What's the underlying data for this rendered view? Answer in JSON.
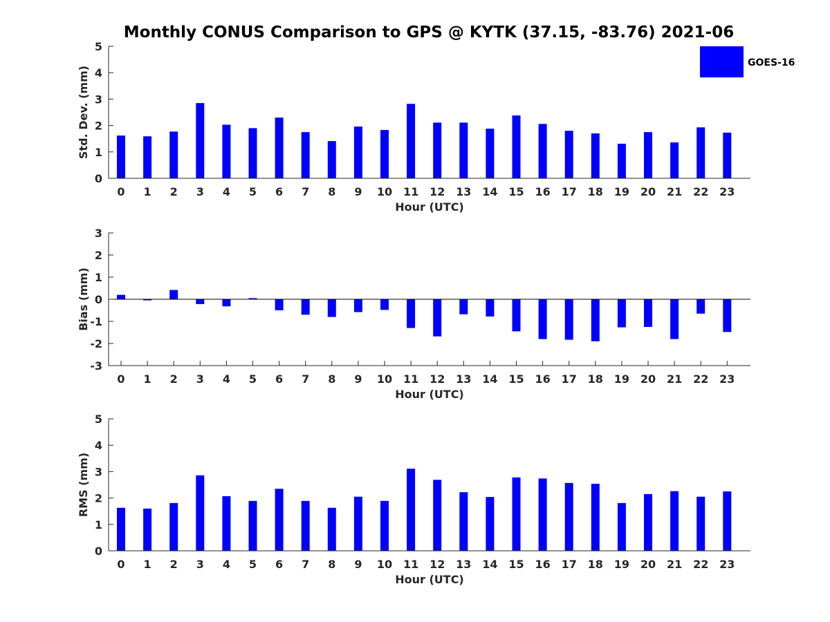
{
  "title": "Monthly CONUS Comparison to GPS @ KYTK (37.15, -83.76) 2021-06",
  "legend": {
    "label": "GOES-16",
    "color": "#0000ff",
    "placement": "top-right"
  },
  "chart_data": [
    {
      "type": "bar",
      "xlabel": "Hour (UTC)",
      "ylabel": "Std. Dev. (mm)",
      "ylim": [
        0,
        5
      ],
      "yticks": [
        0,
        1,
        2,
        3,
        4,
        5
      ],
      "categories": [
        "0",
        "1",
        "2",
        "3",
        "4",
        "5",
        "6",
        "7",
        "8",
        "9",
        "10",
        "11",
        "12",
        "13",
        "14",
        "15",
        "16",
        "17",
        "18",
        "19",
        "20",
        "21",
        "22",
        "23"
      ],
      "series": [
        {
          "name": "GOES-16",
          "color": "#0000ff",
          "values": [
            1.62,
            1.59,
            1.77,
            2.85,
            2.03,
            1.9,
            2.3,
            1.75,
            1.41,
            1.96,
            1.83,
            2.82,
            2.11,
            2.11,
            1.88,
            2.38,
            2.06,
            1.8,
            1.7,
            1.31,
            1.75,
            1.36,
            1.93,
            1.73
          ]
        }
      ]
    },
    {
      "type": "bar",
      "xlabel": "Hour (UTC)",
      "ylabel": "Bias (mm)",
      "ylim": [
        -3,
        3
      ],
      "yticks": [
        -3,
        -2,
        -1,
        0,
        1,
        2,
        3
      ],
      "categories": [
        "0",
        "1",
        "2",
        "3",
        "4",
        "5",
        "6",
        "7",
        "8",
        "9",
        "10",
        "11",
        "12",
        "13",
        "14",
        "15",
        "16",
        "17",
        "18",
        "19",
        "20",
        "21",
        "22",
        "23"
      ],
      "series": [
        {
          "name": "GOES-16",
          "color": "#0000ff",
          "values": [
            0.2,
            -0.05,
            0.42,
            -0.22,
            -0.32,
            0.05,
            -0.5,
            -0.7,
            -0.8,
            -0.58,
            -0.48,
            -1.3,
            -1.68,
            -0.68,
            -0.78,
            -1.45,
            -1.8,
            -1.83,
            -1.9,
            -1.27,
            -1.25,
            -1.8,
            -0.65,
            -1.48
          ]
        }
      ]
    },
    {
      "type": "bar",
      "xlabel": "Hour (UTC)",
      "ylabel": "RMS (mm)",
      "ylim": [
        0,
        5
      ],
      "yticks": [
        0,
        1,
        2,
        3,
        4,
        5
      ],
      "categories": [
        "0",
        "1",
        "2",
        "3",
        "4",
        "5",
        "6",
        "7",
        "8",
        "9",
        "10",
        "11",
        "12",
        "13",
        "14",
        "15",
        "16",
        "17",
        "18",
        "19",
        "20",
        "21",
        "22",
        "23"
      ],
      "series": [
        {
          "name": "GOES-16",
          "color": "#0000ff",
          "values": [
            1.63,
            1.6,
            1.81,
            2.86,
            2.07,
            1.89,
            2.35,
            1.89,
            1.63,
            2.05,
            1.89,
            3.11,
            2.69,
            2.22,
            2.04,
            2.78,
            2.74,
            2.57,
            2.54,
            1.81,
            2.15,
            2.26,
            2.05,
            2.25
          ]
        }
      ]
    }
  ]
}
